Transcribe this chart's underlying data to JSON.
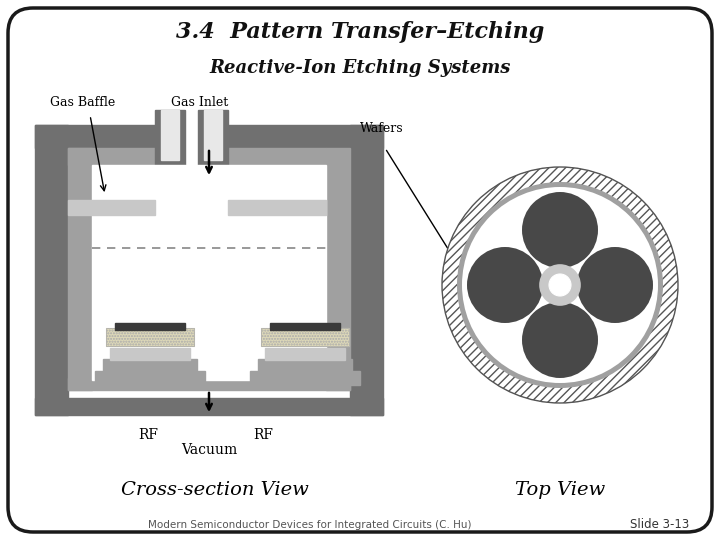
{
  "title1": "3.4  Pattern Transfer–Etching",
  "title2": "Reactive-Ion Etching Systems",
  "label_gas_baffle": "Gas Baffle",
  "label_gas_inlet": "Gas Inlet",
  "label_wafers": "Wafers",
  "label_rf_left": "RF",
  "label_rf_right": "RF",
  "label_vacuum": "Vacuum",
  "label_cross": "Cross-section View",
  "label_top": "Top View",
  "footer": "Modern Semiconductor Devices for Integrated Circuits (C. Hu)",
  "slide": "Slide 3-13",
  "bg_color": "#ffffff",
  "border_color": "#1a1a1a",
  "gray_dark": "#707070",
  "gray_mid": "#a0a0a0",
  "gray_light": "#c8c8c8",
  "gray_lighter": "#e8e8e8",
  "wafer_dark": "#484848",
  "electrode_color": "#ddd8b8",
  "dashed_color": "#888888"
}
